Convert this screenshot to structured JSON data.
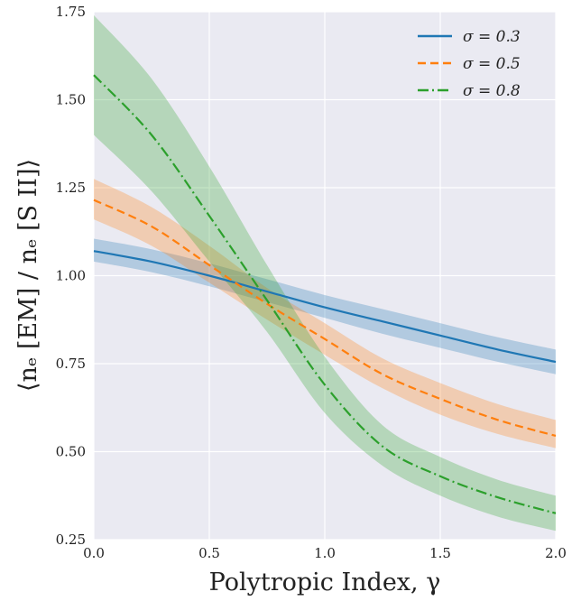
{
  "chart_data": {
    "type": "line",
    "xlabel": "Polytropic Index, γ",
    "ylabel": "⟨nₑ [EM] / nₑ [S II]⟩",
    "xlim": [
      0.0,
      2.0
    ],
    "ylim": [
      0.25,
      1.75
    ],
    "xticks": [
      "0.0",
      "0.5",
      "1.0",
      "1.5",
      "2.0"
    ],
    "yticks": [
      "0.25",
      "0.50",
      "0.75",
      "1.00",
      "1.25",
      "1.50",
      "1.75"
    ],
    "grid": true,
    "background": "#eaeaf2",
    "legend_position": "top-right",
    "series": [
      {
        "name": "σ = 0.3",
        "color": "#1f77b4",
        "linestyle": "solid",
        "x": [
          0.0,
          0.25,
          0.5,
          0.75,
          1.0,
          1.25,
          1.5,
          1.75,
          2.0
        ],
        "y": [
          1.07,
          1.04,
          1.0,
          0.955,
          0.91,
          0.87,
          0.83,
          0.79,
          0.755
        ],
        "y_lower": [
          1.04,
          1.01,
          0.97,
          0.925,
          0.88,
          0.835,
          0.795,
          0.755,
          0.72
        ],
        "y_upper": [
          1.105,
          1.075,
          1.035,
          0.99,
          0.945,
          0.905,
          0.865,
          0.825,
          0.79
        ]
      },
      {
        "name": "σ = 0.5",
        "color": "#ff7f0e",
        "linestyle": "dashed",
        "x": [
          0.0,
          0.25,
          0.5,
          0.75,
          1.0,
          1.25,
          1.5,
          1.75,
          2.0
        ],
        "y": [
          1.215,
          1.14,
          1.03,
          0.92,
          0.82,
          0.72,
          0.65,
          0.59,
          0.545
        ],
        "y_lower": [
          1.16,
          1.085,
          0.98,
          0.875,
          0.775,
          0.68,
          0.605,
          0.55,
          0.51
        ],
        "y_upper": [
          1.275,
          1.195,
          1.085,
          0.965,
          0.865,
          0.765,
          0.695,
          0.635,
          0.59
        ]
      },
      {
        "name": "σ = 0.8",
        "color": "#2ca02c",
        "linestyle": "dashdot",
        "x": [
          0.0,
          0.25,
          0.5,
          0.75,
          1.0,
          1.25,
          1.5,
          1.75,
          2.0
        ],
        "y": [
          1.57,
          1.4,
          1.17,
          0.93,
          0.69,
          0.515,
          0.43,
          0.37,
          0.325
        ],
        "y_lower": [
          1.4,
          1.24,
          1.04,
          0.84,
          0.61,
          0.46,
          0.375,
          0.315,
          0.275
        ],
        "y_upper": [
          1.74,
          1.56,
          1.31,
          1.03,
          0.77,
          0.575,
          0.485,
          0.42,
          0.375
        ]
      }
    ]
  }
}
